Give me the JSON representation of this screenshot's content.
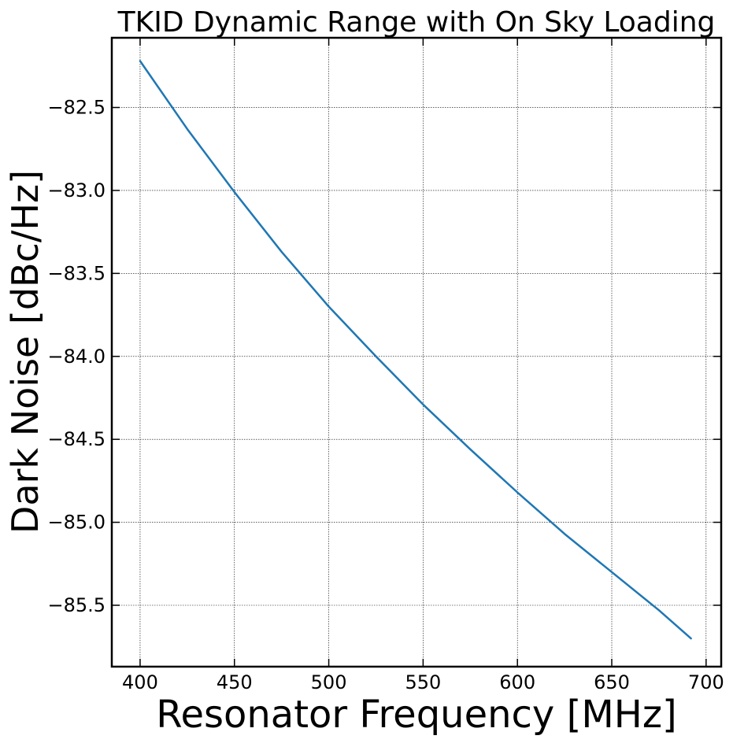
{
  "chart_data": {
    "type": "line",
    "title": "TKID Dynamic Range with On Sky Loading",
    "xlabel": "Resonator Frequency [MHz]",
    "ylabel": "Dark Noise [dBc/Hz]",
    "xlim": [
      385,
      708
    ],
    "ylim": [
      -85.87,
      -82.08
    ],
    "xticks": [
      400,
      450,
      500,
      550,
      600,
      650,
      700
    ],
    "xtick_labels": [
      "400",
      "450",
      "500",
      "550",
      "600",
      "650",
      "700"
    ],
    "yticks": [
      -82.5,
      -83.0,
      -83.5,
      -84.0,
      -84.5,
      -85.0,
      -85.5
    ],
    "ytick_labels": [
      "−82.5",
      "−83.0",
      "−83.5",
      "−84.0",
      "−84.5",
      "−85.0",
      "−85.5"
    ],
    "grid": true,
    "series": [
      {
        "color": "#1f77b4",
        "x": [
          400,
          425,
          450,
          475,
          500,
          525,
          550,
          575,
          600,
          625,
          650,
          675,
          692
        ],
        "y": [
          -82.22,
          -82.63,
          -83.01,
          -83.37,
          -83.7,
          -84.0,
          -84.29,
          -84.56,
          -84.82,
          -85.07,
          -85.3,
          -85.53,
          -85.7
        ]
      }
    ]
  }
}
